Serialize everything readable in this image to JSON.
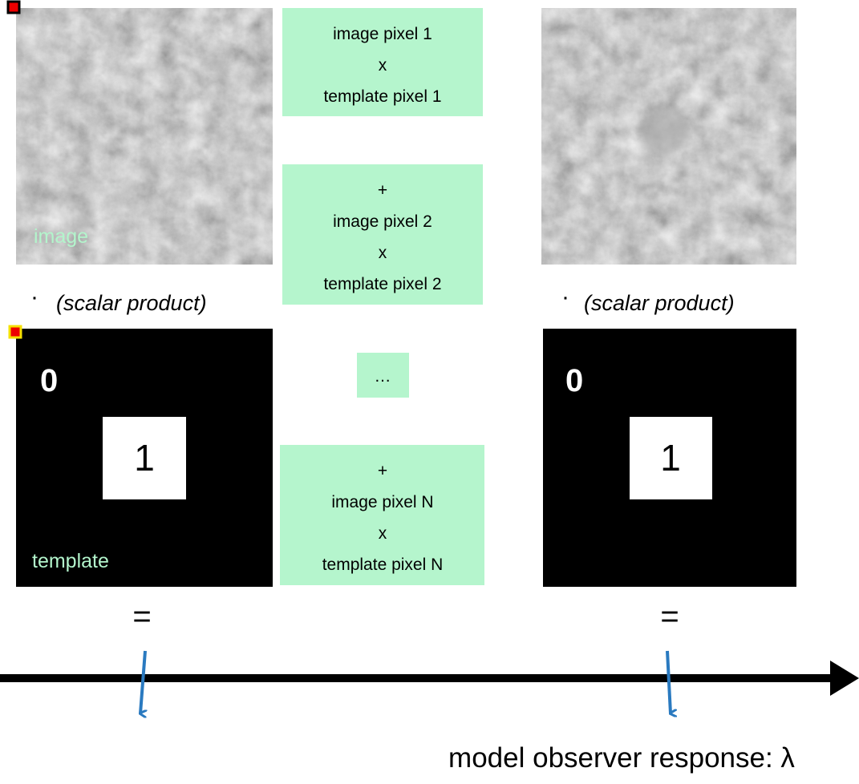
{
  "left": {
    "image_label": "image",
    "dot": "·",
    "scalar_product": "(scalar product)",
    "zero": "0",
    "one": "1",
    "template_label": "template",
    "equals": "="
  },
  "right": {
    "dot": "·",
    "scalar_product": "(scalar product)",
    "zero": "0",
    "one": "1",
    "equals": "="
  },
  "sum_boxes": [
    {
      "lines": [
        "image pixel 1",
        "x",
        "template pixel 1"
      ]
    },
    {
      "lines": [
        "+",
        "image pixel 2",
        "x",
        "template pixel 2"
      ]
    },
    {
      "lines": [
        "…"
      ]
    },
    {
      "lines": [
        "+",
        "image pixel N",
        "x",
        "template pixel N"
      ]
    }
  ],
  "axis_label": "model observer response: λ"
}
